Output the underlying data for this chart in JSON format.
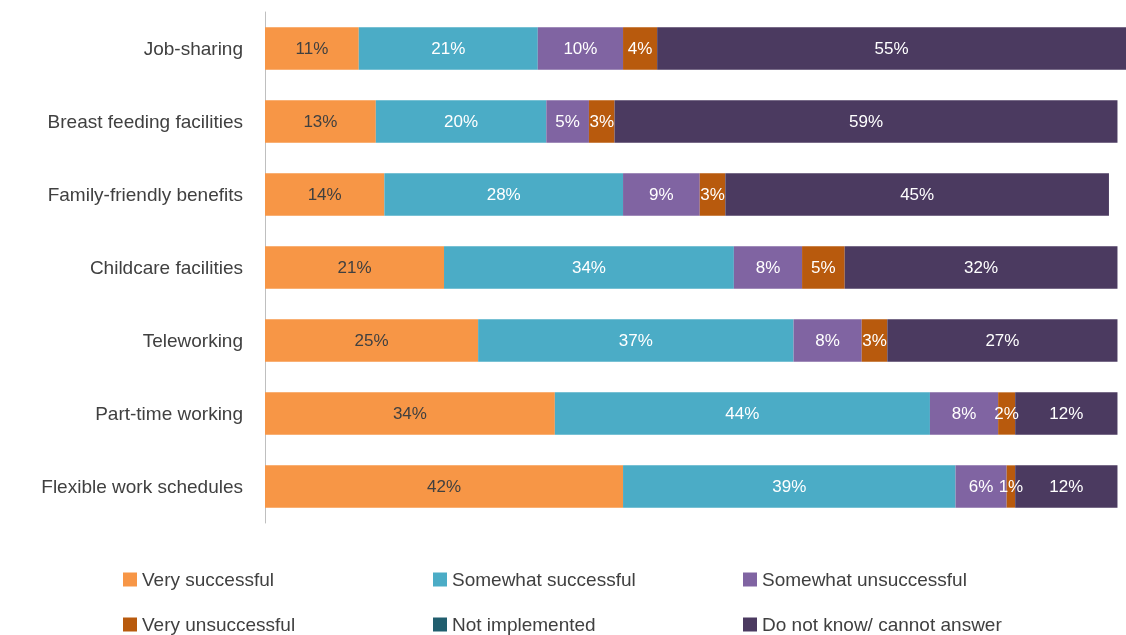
{
  "chart_data": {
    "type": "bar",
    "orientation": "horizontal",
    "stacked": true,
    "legend": "bottom",
    "categories": [
      "Job-sharing",
      "Breast feeding facilities",
      "Family-friendly benefits",
      "Childcare facilities",
      "Teleworking",
      "Part-time working",
      "Flexible work schedules"
    ],
    "series": [
      {
        "name": "Very successful",
        "color": "#f79646",
        "values": [
          11,
          13,
          14,
          21,
          25,
          34,
          42
        ],
        "value_labels": [
          "11%",
          "13%",
          "14%",
          "21%",
          "25%",
          "34%",
          "42%"
        ]
      },
      {
        "name": "Somewhat successful",
        "color": "#4bacc6",
        "values": [
          21,
          20,
          28,
          34,
          37,
          44,
          39
        ],
        "value_labels": [
          "21%",
          "20%",
          "28%",
          "34%",
          "37%",
          "44%",
          "39%"
        ]
      },
      {
        "name": "Somewhat unsuccessful",
        "color": "#8064a2",
        "values": [
          10,
          5,
          9,
          8,
          8,
          8,
          6
        ],
        "value_labels": [
          "10%",
          "5%",
          "9%",
          "8%",
          "8%",
          "8%",
          "6%"
        ]
      },
      {
        "name": "Very unsuccessful",
        "color": "#b85a0d",
        "values": [
          4,
          3,
          3,
          5,
          3,
          2,
          1
        ],
        "value_labels": [
          "4%",
          "3%",
          "3%",
          "5%",
          "3%",
          "2%",
          "1%"
        ]
      },
      {
        "name": "Not implemented",
        "color": "#215e6e",
        "values": [
          null,
          null,
          null,
          null,
          null,
          null,
          null
        ]
      },
      {
        "name": "Do not know/ cannot answer",
        "color": "#4b3a60",
        "values": [
          55,
          59,
          45,
          32,
          27,
          12,
          12
        ],
        "value_labels": [
          "55%",
          "59%",
          "45%",
          "32%",
          "27%",
          "12%",
          "12%"
        ]
      }
    ]
  }
}
